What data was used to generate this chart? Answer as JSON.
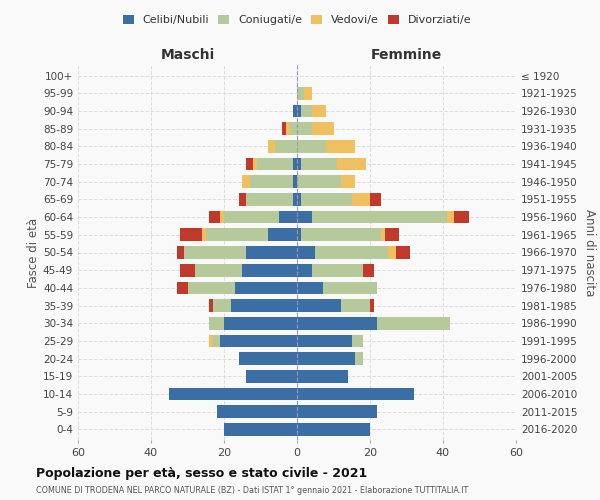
{
  "age_groups": [
    "0-4",
    "5-9",
    "10-14",
    "15-19",
    "20-24",
    "25-29",
    "30-34",
    "35-39",
    "40-44",
    "45-49",
    "50-54",
    "55-59",
    "60-64",
    "65-69",
    "70-74",
    "75-79",
    "80-84",
    "85-89",
    "90-94",
    "95-99",
    "100+"
  ],
  "birth_years": [
    "2016-2020",
    "2011-2015",
    "2006-2010",
    "2001-2005",
    "1996-2000",
    "1991-1995",
    "1986-1990",
    "1981-1985",
    "1976-1980",
    "1971-1975",
    "1966-1970",
    "1961-1965",
    "1956-1960",
    "1951-1955",
    "1946-1950",
    "1941-1945",
    "1936-1940",
    "1931-1935",
    "1926-1930",
    "1921-1925",
    "≤ 1920"
  ],
  "colors": {
    "celibi": "#3a6ea5",
    "coniugati": "#b5c99a",
    "vedovi": "#f0c060",
    "divorziati": "#c0392b"
  },
  "males": {
    "celibi": [
      20,
      22,
      35,
      14,
      16,
      21,
      20,
      18,
      17,
      15,
      14,
      8,
      5,
      1,
      1,
      1,
      0,
      0,
      1,
      0,
      0
    ],
    "coniugati": [
      0,
      0,
      0,
      0,
      0,
      2,
      4,
      5,
      13,
      13,
      17,
      17,
      15,
      13,
      12,
      10,
      6,
      2,
      0,
      0,
      0
    ],
    "vedovi": [
      0,
      0,
      0,
      0,
      0,
      1,
      0,
      0,
      0,
      0,
      0,
      1,
      1,
      0,
      2,
      1,
      2,
      1,
      0,
      0,
      0
    ],
    "divorziati": [
      0,
      0,
      0,
      0,
      0,
      0,
      0,
      1,
      3,
      4,
      2,
      6,
      3,
      2,
      0,
      2,
      0,
      1,
      0,
      0,
      0
    ]
  },
  "females": {
    "celibi": [
      20,
      22,
      32,
      14,
      16,
      15,
      22,
      12,
      7,
      4,
      5,
      1,
      4,
      1,
      0,
      1,
      0,
      0,
      1,
      0,
      0
    ],
    "coniugati": [
      0,
      0,
      0,
      0,
      2,
      3,
      20,
      8,
      15,
      14,
      20,
      22,
      37,
      14,
      12,
      10,
      8,
      4,
      3,
      2,
      0
    ],
    "vedovi": [
      0,
      0,
      0,
      0,
      0,
      0,
      0,
      0,
      0,
      0,
      2,
      1,
      2,
      5,
      4,
      8,
      8,
      6,
      4,
      2,
      0
    ],
    "divorziati": [
      0,
      0,
      0,
      0,
      0,
      0,
      0,
      1,
      0,
      3,
      4,
      4,
      4,
      3,
      0,
      0,
      0,
      0,
      0,
      0,
      0
    ]
  },
  "title": "Popolazione per età, sesso e stato civile - 2021",
  "subtitle": "COMUNE DI TRODENA NEL PARCO NATURALE (BZ) - Dati ISTAT 1° gennaio 2021 - Elaborazione TUTTITALIA.IT",
  "xlabel_left": "Maschi",
  "xlabel_right": "Femmine",
  "ylabel_left": "Fasce di età",
  "ylabel_right": "Anni di nascita",
  "xlim": 60,
  "background_color": "#f9f9f9",
  "legend_labels": [
    "Celibi/Nubili",
    "Coniugati/e",
    "Vedovi/e",
    "Divorziati/e"
  ]
}
